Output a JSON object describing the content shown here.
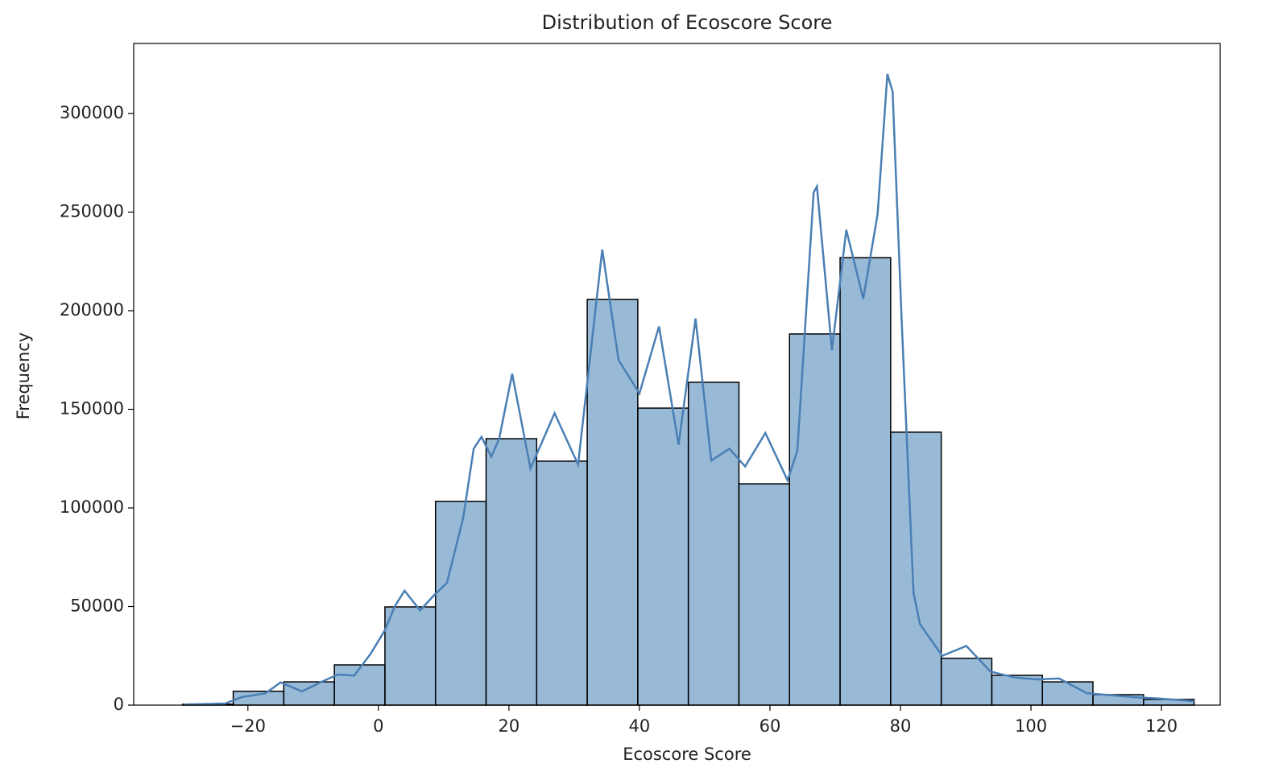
{
  "chart_data": {
    "type": "histogram",
    "title": "Distribution of Ecoscore Score",
    "x_label": "Ecoscore Score",
    "y_label": "Frequency",
    "bins": [
      -30,
      -22.25,
      -14.5,
      -6.75,
      1,
      8.75,
      16.5,
      24.25,
      32,
      39.75,
      47.5,
      55.25,
      63,
      70.75,
      78.5,
      86.25,
      94,
      101.75,
      109.5,
      117.25,
      125
    ],
    "values": [
      500,
      7000,
      11800,
      20400,
      49800,
      103300,
      135100,
      123700,
      205700,
      150600,
      163700,
      112200,
      188200,
      226900,
      138400,
      23700,
      15100,
      11800,
      5300,
      2900
    ],
    "color": "#4682b4",
    "edge_color": "#000000",
    "kde": {
      "color": "#4a7fb5",
      "x": [
        -29.9,
        -23.5,
        -21,
        -17.3,
        -15,
        -11.7,
        -8.6,
        -6.2,
        -3.7,
        -1.2,
        1,
        2.5,
        4,
        6.4,
        8.6,
        10.5,
        13,
        14.6,
        15.8,
        17.3,
        18.5,
        20.5,
        23.3,
        27,
        30.6,
        34.3,
        36.8,
        40,
        43,
        46,
        48.6,
        51,
        53.8,
        56.2,
        59.3,
        62.7,
        64.2,
        66.7,
        67.2,
        69.5,
        71.7,
        74.3,
        76.5,
        78,
        78.8,
        80.2,
        82,
        83,
        86.4,
        90.1,
        93.8,
        97.5,
        101,
        104.3,
        108.6,
        112.3,
        116,
        119.8,
        125
      ],
      "values": [
        300,
        800,
        4000,
        6000,
        11500,
        7000,
        12000,
        15500,
        15000,
        26000,
        38000,
        50000,
        58000,
        48000,
        56000,
        62000,
        95000,
        130000,
        136000,
        126000,
        135000,
        168000,
        120000,
        148000,
        122000,
        231000,
        175000,
        158000,
        192000,
        132000,
        196000,
        124000,
        130000,
        121000,
        138000,
        114000,
        129000,
        260000,
        263000,
        180000,
        241000,
        206000,
        249000,
        320000,
        311000,
        194000,
        57000,
        41000,
        25000,
        30000,
        17000,
        14000,
        13000,
        13500,
        6000,
        5000,
        4000,
        3300,
        2000
      ]
    },
    "xlim": [
      -37.5,
      129
    ],
    "ylim": [
      0,
      335500
    ],
    "xticks": [
      {
        "value": -20,
        "label": "−20"
      },
      0,
      20,
      40,
      60,
      80,
      100,
      120
    ],
    "yticks": [
      0,
      50000,
      100000,
      150000,
      200000,
      250000,
      300000
    ]
  }
}
